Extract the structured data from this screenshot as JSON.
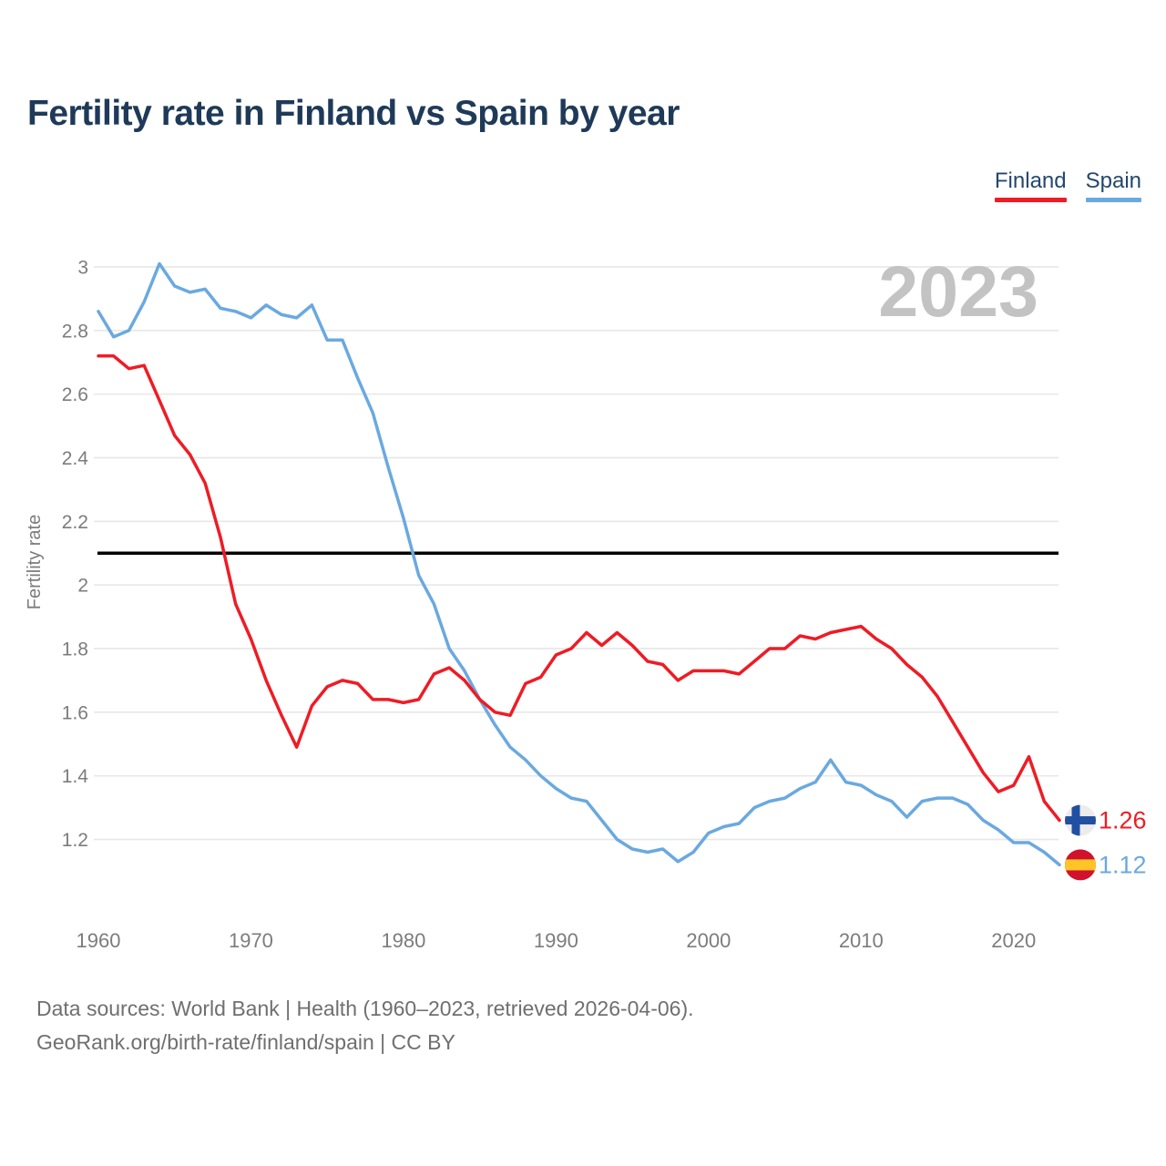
{
  "header": {
    "title": "Fertility rate in Finland vs Spain by year"
  },
  "legend": [
    {
      "label": "Finland",
      "color": "#ee1c25"
    },
    {
      "label": "Spain",
      "color": "#6aa9e0"
    }
  ],
  "watermark": "2023",
  "chart_data": {
    "type": "line",
    "title": "Fertility rate in Finland vs Spain by year",
    "xlabel": "",
    "ylabel": "Fertility rate",
    "x": [
      1960,
      1961,
      1962,
      1963,
      1964,
      1965,
      1966,
      1967,
      1968,
      1969,
      1970,
      1971,
      1972,
      1973,
      1974,
      1975,
      1976,
      1977,
      1978,
      1979,
      1980,
      1981,
      1982,
      1983,
      1984,
      1985,
      1986,
      1987,
      1988,
      1989,
      1990,
      1991,
      1992,
      1993,
      1994,
      1995,
      1996,
      1997,
      1998,
      1999,
      2000,
      2001,
      2002,
      2003,
      2004,
      2005,
      2006,
      2007,
      2008,
      2009,
      2010,
      2011,
      2012,
      2013,
      2014,
      2015,
      2016,
      2017,
      2018,
      2019,
      2020,
      2021,
      2022,
      2023
    ],
    "series": [
      {
        "name": "Spain",
        "color": "#6aa9e0",
        "values": [
          2.86,
          2.78,
          2.8,
          2.89,
          3.01,
          2.94,
          2.92,
          2.93,
          2.87,
          2.86,
          2.84,
          2.88,
          2.85,
          2.84,
          2.88,
          2.77,
          2.77,
          2.65,
          2.54,
          2.37,
          2.21,
          2.03,
          1.94,
          1.8,
          1.73,
          1.64,
          1.56,
          1.49,
          1.45,
          1.4,
          1.36,
          1.33,
          1.32,
          1.26,
          1.2,
          1.17,
          1.16,
          1.17,
          1.13,
          1.16,
          1.22,
          1.24,
          1.25,
          1.3,
          1.32,
          1.33,
          1.36,
          1.38,
          1.45,
          1.38,
          1.37,
          1.34,
          1.32,
          1.27,
          1.32,
          1.33,
          1.33,
          1.31,
          1.26,
          1.23,
          1.19,
          1.19,
          1.16,
          1.12
        ]
      },
      {
        "name": "Finland",
        "color": "#ee1c25",
        "values": [
          2.72,
          2.72,
          2.68,
          2.69,
          2.58,
          2.47,
          2.41,
          2.32,
          2.15,
          1.94,
          1.83,
          1.7,
          1.59,
          1.49,
          1.62,
          1.68,
          1.7,
          1.69,
          1.64,
          1.64,
          1.63,
          1.64,
          1.72,
          1.74,
          1.7,
          1.64,
          1.6,
          1.59,
          1.69,
          1.71,
          1.78,
          1.8,
          1.85,
          1.81,
          1.85,
          1.81,
          1.76,
          1.75,
          1.7,
          1.73,
          1.73,
          1.73,
          1.72,
          1.76,
          1.8,
          1.8,
          1.84,
          1.83,
          1.85,
          1.86,
          1.87,
          1.83,
          1.8,
          1.75,
          1.71,
          1.65,
          1.57,
          1.49,
          1.41,
          1.35,
          1.37,
          1.46,
          1.32,
          1.26
        ]
      }
    ],
    "yticks": [
      3,
      2.8,
      2.6,
      2.4,
      2.2,
      2,
      1.8,
      1.6,
      1.4,
      1.2
    ],
    "xticks": [
      1960,
      1970,
      1980,
      1990,
      2000,
      2010,
      2020
    ],
    "xlim": [
      1960,
      2023
    ],
    "ylim": [
      1.2,
      3.0
    ],
    "grid": true,
    "legend_position": "top-right",
    "reference_line": {
      "value": 2.1,
      "color": "#000000"
    },
    "end_labels": [
      {
        "series": "Finland",
        "value": "1.26",
        "flag": "finland-flag-icon",
        "color": "#ee1c25"
      },
      {
        "series": "Spain",
        "value": "1.12",
        "flag": "spain-flag-icon",
        "color": "#6aa9e0"
      }
    ]
  },
  "footer": {
    "line1": "Data sources: World Bank | Health (1960–2023, retrieved 2026-04-06).",
    "line2": "GeoRank.org/birth-rate/finland/spain | CC BY"
  }
}
